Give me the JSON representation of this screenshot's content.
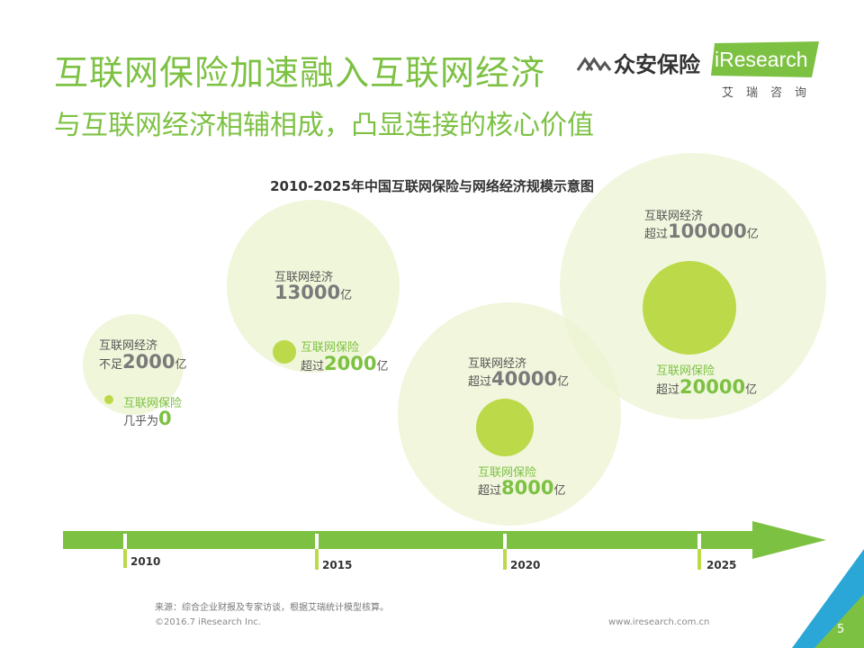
{
  "header": {
    "title": "互联网保险加速融入互联网经济",
    "subtitle": "与互联网经济相辅相成，凸显连接的核心价值"
  },
  "logo": {
    "zhongan": "众安保险",
    "iresearch": "iResearch",
    "iresearch_cn": "艾瑞咨询"
  },
  "diagram": {
    "title": "2010-2025年中国互联网保险与网络经济规模示意图",
    "stages": [
      {
        "year": "2010",
        "economy_label": "互联网经济",
        "economy_prefix": "不足",
        "economy_value": "2000",
        "economy_unit": "亿",
        "insurance_label": "互联网保险",
        "insurance_prefix": "几乎为",
        "insurance_value": "0",
        "insurance_unit": ""
      },
      {
        "year": "2015",
        "economy_label": "互联网经济",
        "economy_prefix": "",
        "economy_value": "13000",
        "economy_unit": "亿",
        "insurance_label": "互联网保险",
        "insurance_prefix": "超过",
        "insurance_value": "2000",
        "insurance_unit": "亿"
      },
      {
        "year": "2020",
        "economy_label": "互联网经济",
        "economy_prefix": "超过",
        "economy_value": "40000",
        "economy_unit": "亿",
        "insurance_label": "互联网保险",
        "insurance_prefix": "超过",
        "insurance_value": "8000",
        "insurance_unit": "亿"
      },
      {
        "year": "2025",
        "economy_label": "互联网经济",
        "economy_prefix": "超过",
        "economy_value": "100000",
        "economy_unit": "亿",
        "insurance_label": "互联网保险",
        "insurance_prefix": "超过",
        "insurance_value": "20000",
        "insurance_unit": "亿"
      }
    ]
  },
  "footer": {
    "source": "来源：综合企业财报及专家访谈，根据艾瑞统计模型核算。",
    "copyright": "©2016.7 iResearch Inc.",
    "website": "www.iresearch.com.cn",
    "page": "5"
  },
  "colors": {
    "accent": "#7dc143",
    "circle_light": "#eef5d6",
    "circle_dark": "#bcd94a",
    "timeline": "#7dc143",
    "corner_blue": "#2aa7d6"
  }
}
